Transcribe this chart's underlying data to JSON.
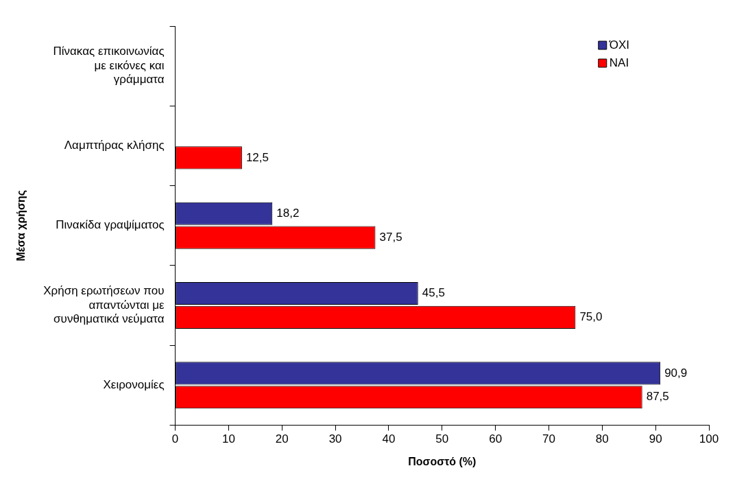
{
  "chart_data": {
    "type": "bar",
    "orientation": "horizontal",
    "xlabel": "Ποσοστό (%)",
    "ylabel": "Μέσα χρήσης",
    "categories": [
      "Πίνακας επικοινωνίας\nμε εικόνες και\nγράμματα",
      "Λαμπτήρας κλήσης",
      "Πινακίδα γραψίματος",
      "Χρήση ερωτήσεων που\nαπαντώνται με\nσυνθηματικά νεύματα",
      "Χειρονομίες"
    ],
    "series": [
      {
        "name": "ΌΧΙ",
        "color": "#333399",
        "values": [
          null,
          null,
          18.2,
          45.5,
          90.9
        ],
        "value_labels": [
          null,
          null,
          "18,2",
          "45,5",
          "90,9"
        ]
      },
      {
        "name": "ΝΑΙ",
        "color": "#ff0000",
        "values": [
          null,
          12.5,
          37.5,
          75.0,
          87.5
        ],
        "value_labels": [
          null,
          "12,5",
          "37,5",
          "75,0",
          "87,5"
        ]
      }
    ],
    "xlim": [
      0,
      100
    ],
    "xticks": [
      0,
      10,
      20,
      30,
      40,
      50,
      60,
      70,
      80,
      90,
      100
    ],
    "grid": false,
    "legend": "top right"
  }
}
